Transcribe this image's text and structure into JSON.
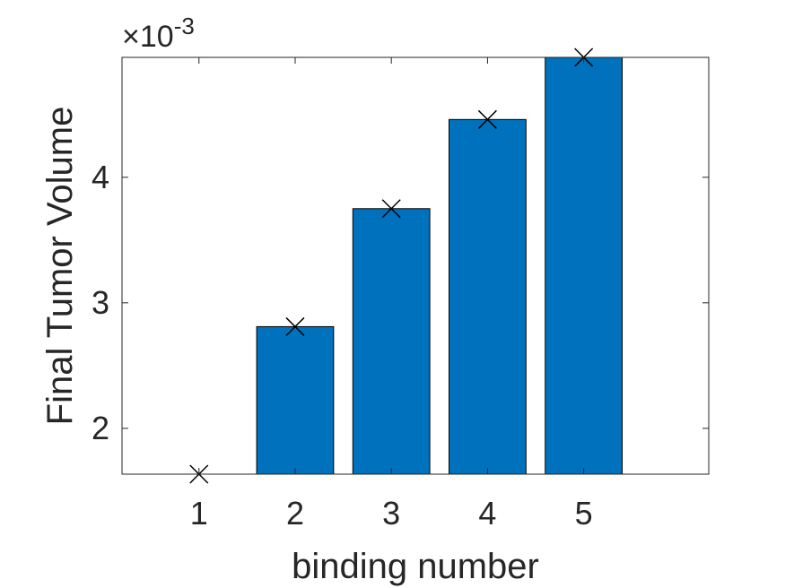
{
  "chart_data": {
    "type": "bar",
    "x": [
      1,
      2,
      3,
      4,
      5
    ],
    "categories": [
      "1",
      "2",
      "3",
      "4",
      "5"
    ],
    "values": [
      1.635,
      2.81,
      3.75,
      4.46,
      4.955
    ],
    "markers": {
      "shape": "x",
      "x": [
        1,
        2,
        3,
        4,
        5
      ],
      "y": [
        1.635,
        2.81,
        3.75,
        4.46,
        4.955
      ],
      "color": "#000000"
    },
    "xlabel": "binding number",
    "ylabel": "Final Tumor Volume",
    "y_exponent": {
      "prefix": "×10",
      "power": "-3"
    },
    "y_ticks": [
      2,
      3,
      4
    ],
    "y_tick_labels": [
      "2",
      "3",
      "4"
    ],
    "x_ticks": [
      1,
      2,
      3,
      4,
      5
    ],
    "x_tick_labels": [
      "1",
      "2",
      "3",
      "4",
      "5"
    ],
    "xlim": [
      0.2,
      6.3
    ],
    "ylim": [
      1.635,
      4.955
    ],
    "y_scale_multiplier": 0.001,
    "grid": false,
    "legend": "none",
    "bar_color": "#0072BD",
    "bar_edge_color": "#000000",
    "axis_color": "#262626",
    "background": "#ffffff"
  }
}
